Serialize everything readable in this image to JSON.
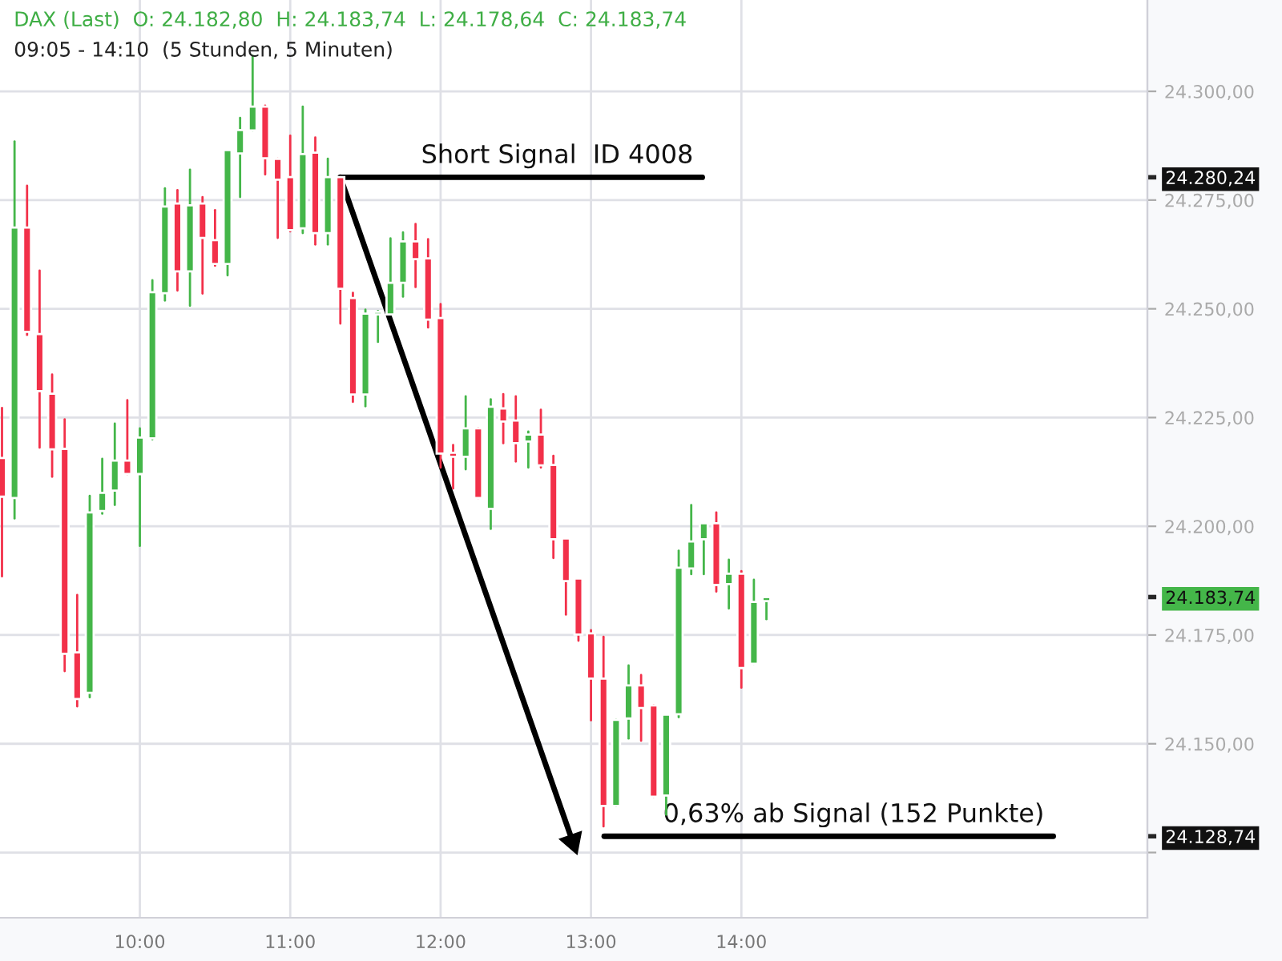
{
  "chart_data": {
    "type": "candlestick",
    "title": "DAX (Last)  O: 24.182,80  H: 24.183,74  L: 24.178,64  C: 24.183,74",
    "subtitle": "09:05 - 14:10  (5 Stunden, 5 Minuten)",
    "x": [
      9.0833,
      9.1667,
      9.25,
      9.3333,
      9.4167,
      9.5,
      9.5833,
      9.6667,
      9.75,
      9.8333,
      9.9167,
      10,
      10.0833,
      10.1667,
      10.25,
      10.3333,
      10.4167,
      10.5,
      10.5833,
      10.6667,
      10.75,
      10.8333,
      10.9167,
      11,
      11.0833,
      11.1667,
      11.25,
      11.3333,
      11.4167,
      11.5,
      11.5833,
      11.6667,
      11.75,
      11.8333,
      11.9167,
      12,
      12.0833,
      12.1667,
      12.25,
      12.3333,
      12.4167,
      12.5,
      12.5833,
      12.6667,
      12.75,
      12.8333,
      12.9167,
      13,
      13.0833,
      13.1667,
      13.25,
      13.3333,
      13.4167,
      13.5,
      13.5833,
      13.6667,
      13.75,
      13.8333,
      13.9167,
      14,
      14.0833,
      14.1667
    ],
    "ohlc": [
      [
        24215.7,
        24227.2,
        24188.5,
        24206.8
      ],
      [
        24206.5,
        24288.5,
        24201.8,
        24268.7
      ],
      [
        24268.7,
        24278.3,
        24244.0,
        24244.7
      ],
      [
        24244.2,
        24258.8,
        24218.1,
        24231.1
      ],
      [
        24230.5,
        24234.9,
        24211.4,
        24217.7
      ],
      [
        24217.8,
        24224.6,
        24166.7,
        24170.7
      ],
      [
        24171.0,
        24184.2,
        24158.6,
        24160.3
      ],
      [
        24161.7,
        24207.0,
        24160.7,
        24203.2
      ],
      [
        24203.5,
        24215.5,
        24202.9,
        24207.7
      ],
      [
        24208.2,
        24223.6,
        24204.9,
        24215.1
      ],
      [
        24215.1,
        24229.0,
        24212.0,
        24212.0
      ],
      [
        24212.0,
        24222.5,
        24195.5,
        24220.4
      ],
      [
        24220.2,
        24256.6,
        24220.0,
        24253.8
      ],
      [
        24253.6,
        24277.7,
        24251.9,
        24273.5
      ],
      [
        24274.2,
        24277.3,
        24254.2,
        24258.6
      ],
      [
        24258.6,
        24282.0,
        24250.7,
        24273.8
      ],
      [
        24274.2,
        24275.7,
        24253.5,
        24266.3
      ],
      [
        24265.8,
        24272.7,
        24259.9,
        24260.3
      ],
      [
        24260.3,
        24286.5,
        24257.7,
        24286.5
      ],
      [
        24285.7,
        24293.9,
        24275.7,
        24291.1
      ],
      [
        24291.0,
        24308.2,
        24291.0,
        24296.5
      ],
      [
        24296.5,
        24296.7,
        24280.9,
        24284.6
      ],
      [
        24284.5,
        24284.5,
        24266.3,
        24279.7
      ],
      [
        24280.3,
        24289.8,
        24267.8,
        24268.1
      ],
      [
        24268.5,
        24296.5,
        24267.4,
        24285.6
      ],
      [
        24285.9,
        24289.4,
        24264.8,
        24267.4
      ],
      [
        24267.4,
        24284.5,
        24264.8,
        24280.3
      ],
      [
        24280.3,
        24280.3,
        24246.6,
        24254.6
      ],
      [
        24252.5,
        24253.7,
        24228.6,
        24230.3
      ],
      [
        24230.3,
        24249.8,
        24227.6,
        24248.9
      ],
      [
        24248.7,
        24249.5,
        24242.4,
        24249.3
      ],
      [
        24248.7,
        24266.2,
        24248.7,
        24256.0
      ],
      [
        24256.0,
        24267.6,
        24252.8,
        24265.5
      ],
      [
        24265.5,
        24269.5,
        24255.0,
        24261.4
      ],
      [
        24261.6,
        24266.0,
        24245.7,
        24247.5
      ],
      [
        24247.9,
        24251.1,
        24213.5,
        24216.7
      ],
      [
        24216.9,
        24218.7,
        24208.7,
        24216.0
      ],
      [
        24216.0,
        24229.9,
        24213.1,
        24222.5
      ],
      [
        24222.5,
        24222.5,
        24206.5,
        24206.5
      ],
      [
        24204.0,
        24229.2,
        24199.4,
        24227.5
      ],
      [
        24227.1,
        24230.4,
        24219.1,
        24224.1
      ],
      [
        24224.3,
        24229.9,
        24214.9,
        24219.1
      ],
      [
        24219.5,
        24221.8,
        24213.5,
        24221.1
      ],
      [
        24221.1,
        24226.8,
        24213.5,
        24214.0
      ],
      [
        24214.1,
        24216.2,
        24192.7,
        24197.0
      ],
      [
        24197.2,
        24197.2,
        24179.7,
        24187.4
      ],
      [
        24188.0,
        24188.0,
        24173.7,
        24175.1
      ],
      [
        24175.4,
        24176.1,
        24155.4,
        24165.0
      ],
      [
        24165.0,
        24174.6,
        24131.0,
        24135.7
      ],
      [
        24135.7,
        24155.5,
        24135.7,
        24155.5
      ],
      [
        24155.8,
        24168.0,
        24151.2,
        24163.4
      ],
      [
        24163.4,
        24165.8,
        24150.7,
        24158.2
      ],
      [
        24158.8,
        24158.8,
        24137.8,
        24137.8
      ],
      [
        24138.1,
        24156.7,
        24133.7,
        24156.7
      ],
      [
        24156.8,
        24194.4,
        24156.1,
        24190.5
      ],
      [
        24190.3,
        24204.9,
        24189.0,
        24196.5
      ],
      [
        24197.0,
        24200.7,
        24189.0,
        24200.7
      ],
      [
        24200.7,
        24203.2,
        24185.0,
        24186.5
      ],
      [
        24186.7,
        24192.3,
        24181.1,
        24189.1
      ],
      [
        24189.1,
        24189.7,
        24162.9,
        24167.4
      ],
      [
        24168.4,
        24187.7,
        24168.4,
        24182.6
      ],
      [
        24182.8,
        24183.74,
        24178.64,
        24183.74
      ]
    ],
    "series": [
      {
        "type": "line",
        "x": [
          11.3333,
          13.74
        ],
        "values": [
          24280.24,
          24280.24
        ],
        "color": "#000000"
      },
      {
        "type": "line",
        "x": [
          11.3333,
          12.878
        ],
        "values": [
          24280.24,
          24127.5
        ],
        "color": "#000000",
        "marker": "triangle"
      },
      {
        "type": "line",
        "x": [
          13.088,
          16.074
        ],
        "values": [
          24128.74,
          24128.74
        ],
        "color": "#000000"
      }
    ],
    "annotations": [
      {
        "text": "Short Signal  ID 4008",
        "x": 13.74,
        "y": 24280.24
      },
      {
        "text": "0,63% ab Signal (152 Punkte)",
        "x": 16.074,
        "y": 24128.74
      }
    ],
    "y2lim": [
      24110,
      24321
    ],
    "y2ticks": [
      {
        "value": 24280.24,
        "label": "24.280,24"
      },
      {
        "value": 24183.74,
        "label": "24.183,74"
      },
      {
        "value": 24128.74,
        "label": "24.128,74"
      }
    ],
    "xlim": [
      9.07,
      16.7
    ],
    "xticks": [
      {
        "value": 10,
        "label": "10:00"
      },
      {
        "value": 11,
        "label": "11:00"
      },
      {
        "value": 12,
        "label": "12:00"
      },
      {
        "value": 13,
        "label": "13:00"
      },
      {
        "value": 14,
        "label": "14:00"
      }
    ],
    "ylim": [
      24110,
      24321
    ],
    "yticks": [
      {
        "value": 24125,
        "label": null
      },
      {
        "value": 24150,
        "label": "24.150,00"
      },
      {
        "value": 24175,
        "label": "24.175,00"
      },
      {
        "value": 24200,
        "label": "24.200,00"
      },
      {
        "value": 24225,
        "label": "24.225,00"
      },
      {
        "value": 24250,
        "label": "24.250,00"
      },
      {
        "value": 24275,
        "label": "24.275,00"
      },
      {
        "value": 24300,
        "label": "24.300,00"
      }
    ],
    "grid": true,
    "legend": false
  }
}
